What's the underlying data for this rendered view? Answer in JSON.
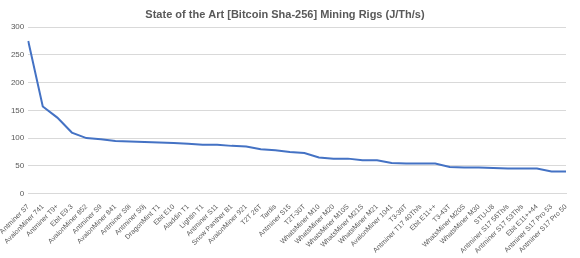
{
  "chart_data": {
    "type": "line",
    "title": "State of the Art [Bitcoin Sha-256] Mining Rigs (J/Th/s)",
    "categories": [
      "Antminer S7",
      "AvalonMiner 741",
      "Antminer T9+",
      "Ebit E9.3",
      "AvalonMiner 852",
      "Antminer S9",
      "AvalonMiner 841",
      "Antminer S9i",
      "Antminer S9j",
      "DragonMint T1",
      "Ebit E10",
      "Aladdin T1",
      "Lightin T1",
      "Antminer S11",
      "Snow Panther B1",
      "AvalonMiner 921",
      "T2T 26T",
      "Tardis",
      "Antminer S15",
      "T2T-30T",
      "WhatsMiner M10",
      "WhatsMiner M20",
      "WhatsMiner M10S",
      "WhatsMiner M21S",
      "WhatsMiner M21",
      "AvalonMiner 1041",
      "T3-39T",
      "Antminer T17 40Th/s",
      "Ebit E11++",
      "T3-43T",
      "WhatsMiner M20S",
      "WhatsMiner M30",
      "STU-U8",
      "Antminer S17 56Th/s",
      "Antminer S17 53Th/s",
      "Ebit E11++44",
      "Antminer S17 Pro 53",
      "Antminer S17 Pro 50"
    ],
    "values": [
      275,
      157,
      137,
      110,
      100,
      98,
      95,
      94,
      93,
      92,
      91,
      90,
      88,
      88,
      86,
      85,
      80,
      78,
      75,
      73,
      65,
      63,
      63,
      60,
      60,
      55,
      54,
      54,
      54,
      48,
      47,
      47,
      46,
      45,
      45,
      45,
      40,
      40
    ],
    "color": "#4472c4",
    "ylim": [
      0,
      300
    ],
    "yticks": [
      0,
      50,
      100,
      150,
      200,
      250,
      300
    ],
    "grid": true
  }
}
